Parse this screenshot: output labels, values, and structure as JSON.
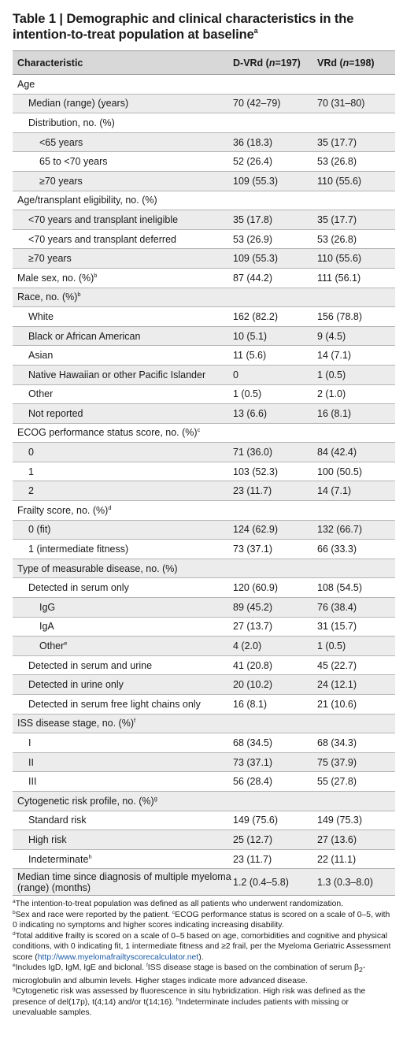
{
  "title": {
    "label": "Table 1",
    "sep": " | ",
    "text": "Demographic and clinical characteristics in the intention-to-treat population at baseline",
    "sup": "a"
  },
  "header": {
    "characteristic": "Characteristic",
    "arm1_name": "D-VRd (",
    "arm1_n": "n",
    "arm1_count": "=197)",
    "arm2_name": "VRd (",
    "arm2_n": "n",
    "arm2_count": "=198)"
  },
  "rows": [
    {
      "label": "Age",
      "sup": "",
      "dvrd": "",
      "vrd": "",
      "level": 0
    },
    {
      "label": "Median (range) (years)",
      "sup": "",
      "dvrd": "70 (42–79)",
      "vrd": "70 (31–80)",
      "level": 1
    },
    {
      "label": "Distribution, no. (%)",
      "sup": "",
      "dvrd": "",
      "vrd": "",
      "level": 1
    },
    {
      "label": "<65 years",
      "sup": "",
      "dvrd": "36 (18.3)",
      "vrd": "35 (17.7)",
      "level": 2
    },
    {
      "label": "65 to <70 years",
      "sup": "",
      "dvrd": "52 (26.4)",
      "vrd": "53 (26.8)",
      "level": 2
    },
    {
      "label": "≥70 years",
      "sup": "",
      "dvrd": "109 (55.3)",
      "vrd": "110 (55.6)",
      "level": 2
    },
    {
      "label": "Age/transplant eligibility, no. (%)",
      "sup": "",
      "dvrd": "",
      "vrd": "",
      "level": 0
    },
    {
      "label": "<70 years and transplant ineligible",
      "sup": "",
      "dvrd": "35 (17.8)",
      "vrd": "35 (17.7)",
      "level": 1
    },
    {
      "label": "<70 years and transplant deferred",
      "sup": "",
      "dvrd": "53 (26.9)",
      "vrd": "53 (26.8)",
      "level": 1
    },
    {
      "label": "≥70 years",
      "sup": "",
      "dvrd": "109 (55.3)",
      "vrd": "110 (55.6)",
      "level": 1
    },
    {
      "label": "Male sex, no. (%)",
      "sup": "b",
      "dvrd": "87 (44.2)",
      "vrd": "111 (56.1)",
      "level": 0
    },
    {
      "label": "Race, no. (%)",
      "sup": "b",
      "dvrd": "",
      "vrd": "",
      "level": 0
    },
    {
      "label": "White",
      "sup": "",
      "dvrd": "162 (82.2)",
      "vrd": "156 (78.8)",
      "level": 1
    },
    {
      "label": "Black or African American",
      "sup": "",
      "dvrd": "10 (5.1)",
      "vrd": "9 (4.5)",
      "level": 1
    },
    {
      "label": "Asian",
      "sup": "",
      "dvrd": "11 (5.6)",
      "vrd": "14 (7.1)",
      "level": 1
    },
    {
      "label": "Native Hawaiian or other Pacific Islander",
      "sup": "",
      "dvrd": "0",
      "vrd": "1 (0.5)",
      "level": 1
    },
    {
      "label": "Other",
      "sup": "",
      "dvrd": "1 (0.5)",
      "vrd": "2 (1.0)",
      "level": 1
    },
    {
      "label": "Not reported",
      "sup": "",
      "dvrd": "13 (6.6)",
      "vrd": "16 (8.1)",
      "level": 1
    },
    {
      "label": "ECOG performance status score, no. (%)",
      "sup": "c",
      "dvrd": "",
      "vrd": "",
      "level": 0
    },
    {
      "label": "0",
      "sup": "",
      "dvrd": "71 (36.0)",
      "vrd": "84 (42.4)",
      "level": 1
    },
    {
      "label": "1",
      "sup": "",
      "dvrd": "103 (52.3)",
      "vrd": "100 (50.5)",
      "level": 1
    },
    {
      "label": "2",
      "sup": "",
      "dvrd": "23 (11.7)",
      "vrd": "14 (7.1)",
      "level": 1
    },
    {
      "label": "Frailty score, no. (%)",
      "sup": "d",
      "dvrd": "",
      "vrd": "",
      "level": 0
    },
    {
      "label": "0 (fit)",
      "sup": "",
      "dvrd": "124 (62.9)",
      "vrd": "132 (66.7)",
      "level": 1
    },
    {
      "label": "1 (intermediate fitness)",
      "sup": "",
      "dvrd": "73 (37.1)",
      "vrd": "66 (33.3)",
      "level": 1
    },
    {
      "label": "Type of measurable disease, no. (%)",
      "sup": "",
      "dvrd": "",
      "vrd": "",
      "level": 0
    },
    {
      "label": "Detected in serum only",
      "sup": "",
      "dvrd": "120 (60.9)",
      "vrd": "108 (54.5)",
      "level": 1
    },
    {
      "label": "IgG",
      "sup": "",
      "dvrd": "89 (45.2)",
      "vrd": "76 (38.4)",
      "level": 2
    },
    {
      "label": "IgA",
      "sup": "",
      "dvrd": "27 (13.7)",
      "vrd": "31 (15.7)",
      "level": 2
    },
    {
      "label": "Other",
      "sup": "e",
      "dvrd": "4 (2.0)",
      "vrd": "1 (0.5)",
      "level": 2
    },
    {
      "label": "Detected in serum and urine",
      "sup": "",
      "dvrd": "41 (20.8)",
      "vrd": "45 (22.7)",
      "level": 1
    },
    {
      "label": "Detected in urine only",
      "sup": "",
      "dvrd": "20 (10.2)",
      "vrd": "24 (12.1)",
      "level": 1
    },
    {
      "label": "Detected in serum free light chains only",
      "sup": "",
      "dvrd": "16 (8.1)",
      "vrd": "21 (10.6)",
      "level": 1
    },
    {
      "label": "ISS disease stage, no. (%)",
      "sup": "f",
      "dvrd": "",
      "vrd": "",
      "level": 0
    },
    {
      "label": "I",
      "sup": "",
      "dvrd": "68 (34.5)",
      "vrd": "68 (34.3)",
      "level": 1
    },
    {
      "label": "II",
      "sup": "",
      "dvrd": "73 (37.1)",
      "vrd": "75 (37.9)",
      "level": 1
    },
    {
      "label": "III",
      "sup": "",
      "dvrd": "56 (28.4)",
      "vrd": "55 (27.8)",
      "level": 1
    },
    {
      "label": "Cytogenetic risk profile, no. (%)",
      "sup": "g",
      "dvrd": "",
      "vrd": "",
      "level": 0
    },
    {
      "label": "Standard risk",
      "sup": "",
      "dvrd": "149 (75.6)",
      "vrd": "149 (75.3)",
      "level": 1
    },
    {
      "label": "High risk",
      "sup": "",
      "dvrd": "25 (12.7)",
      "vrd": "27 (13.6)",
      "level": 1
    },
    {
      "label": "Indeterminate",
      "sup": "h",
      "dvrd": "23 (11.7)",
      "vrd": "22 (11.1)",
      "level": 1
    },
    {
      "label": "Median time since diagnosis of multiple myeloma (range) (months)",
      "sup": "",
      "dvrd": "1.2 (0.4–5.8)",
      "vrd": "1.3 (0.3–8.0)",
      "level": 0
    }
  ],
  "footnotes": {
    "a": {
      "mark": "a",
      "text": "The intention-to-treat population was defined as all patients who underwent randomization."
    },
    "b": {
      "mark": "b",
      "text": "Sex and race were reported by the patient. "
    },
    "c": {
      "mark": "c",
      "text": "ECOG performance status is scored on a scale of 0–5, with 0 indicating no symptoms and higher scores indicating increasing disability."
    },
    "d": {
      "mark": "d",
      "text_before": "Total additive frailty is scored on a scale of 0–5 based on age, comorbidities and cognitive and physical conditions, with 0 indicating fit, 1 intermediate fitness and ≥2 frail, per the Myeloma Geriatric Assessment score (",
      "url": "http://www.myelomafrailtyscorecalculator.net",
      "text_after": ")."
    },
    "e": {
      "mark": "e",
      "text": "Includes IgD, IgM, IgE and biclonal. "
    },
    "f": {
      "mark": "f",
      "text_before": "ISS disease stage is based on the combination of serum β",
      "sub": "2",
      "text_after": "-microglobulin and albumin levels. Higher stages indicate more advanced disease."
    },
    "g": {
      "mark": "g",
      "text": "Cytogenetic risk was assessed by fluorescence in situ hybridization. High risk was defined as the presence of del(17p), t(4;14) and/or t(14;16). "
    },
    "h": {
      "mark": "h",
      "text": "Indeterminate includes patients with missing or unevaluable samples."
    }
  }
}
